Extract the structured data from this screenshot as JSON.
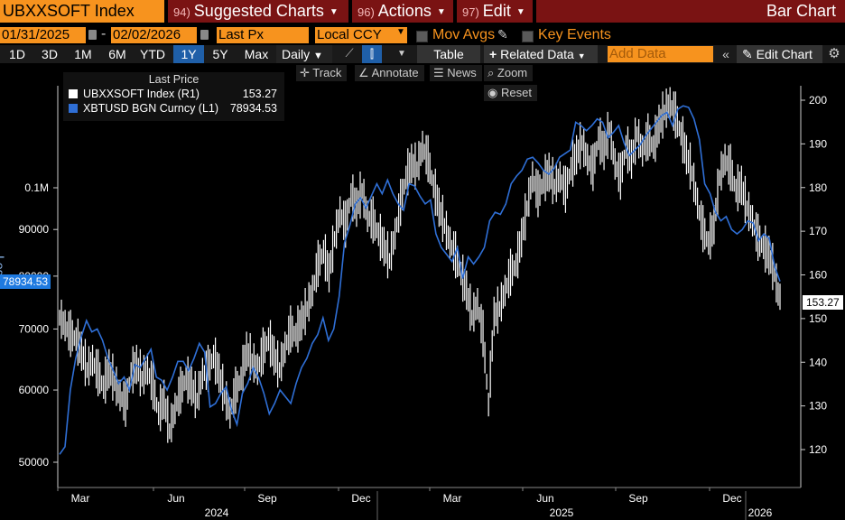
{
  "header": {
    "ticker": "UBXXSOFT Index",
    "suggested_num": "94)",
    "suggested_label": "Suggested Charts",
    "actions_num": "96)",
    "actions_label": "Actions",
    "edit_num": "97)",
    "edit_label": "Edit",
    "chart_type": "Bar Chart"
  },
  "controls": {
    "start_date": "01/31/2025",
    "end_date": "02/02/2026",
    "date_dash": "-",
    "field": "Last Px",
    "currency": "Local CCY",
    "mov_avgs": "Mov Avgs",
    "key_events": "Key Events"
  },
  "toolbar": {
    "ranges": [
      "1D",
      "3D",
      "1M",
      "6M",
      "YTD",
      "1Y",
      "5Y",
      "Max"
    ],
    "selected_range": "1Y",
    "frequency": "Daily",
    "table": "Table",
    "related_data": "Related Data",
    "add_data_placeholder": "Add Data",
    "edit_chart": "Edit Chart"
  },
  "tools": {
    "track": "Track",
    "annotate": "Annotate",
    "news": "News",
    "zoom": "Zoom",
    "reset": "Reset"
  },
  "legend": {
    "header": "Last Price",
    "items": [
      {
        "name": "UBXXSOFT Index  (R1)",
        "value": "153.27",
        "color": "#ffffff"
      },
      {
        "name": "XBTUSD BGN Curncy  (L1)",
        "value": "78934.53",
        "color": "#2f6fd6"
      }
    ]
  },
  "axis_tags": {
    "left": "78934.53",
    "right": "153.27",
    "left_scale": "Log"
  },
  "chart_data": {
    "type": "line",
    "x_labels": [
      "Mar",
      "Jun",
      "Sep",
      "Dec",
      "Mar",
      "Jun",
      "Sep",
      "Dec"
    ],
    "year_labels": [
      "2024",
      "2025",
      "2026"
    ],
    "left_axis": {
      "ticks": [
        "0.1M",
        "90000",
        "80000",
        "70000",
        "60000",
        "50000"
      ],
      "scale": "log"
    },
    "right_axis": {
      "ticks": [
        200,
        190,
        180,
        170,
        160,
        150,
        140,
        130,
        120
      ],
      "ylim": [
        117,
        204
      ]
    },
    "series": [
      {
        "name": "UBXXSOFT Index (R1)",
        "axis": "right",
        "color": "#ffffff",
        "values": [
          150,
          148,
          146,
          145,
          142,
          138,
          140,
          137,
          134,
          138,
          135,
          132,
          130,
          137,
          139,
          136,
          138,
          134,
          128,
          131,
          124,
          129,
          133,
          136,
          134,
          131,
          137,
          138,
          141,
          137,
          132,
          128,
          133,
          136,
          142,
          140,
          138,
          142,
          145,
          141,
          138,
          143,
          147,
          146,
          149,
          152,
          156,
          162,
          165,
          160,
          168,
          174,
          171,
          178,
          175,
          179,
          173,
          172,
          169,
          166,
          163,
          169,
          176,
          182,
          185,
          184,
          189,
          186,
          180,
          175,
          171,
          167,
          164,
          160,
          156,
          150,
          153,
          146,
          130,
          150,
          152,
          156,
          160,
          162,
          168,
          175,
          182,
          178,
          181,
          183,
          180,
          182,
          179,
          184,
          187,
          190,
          186,
          184,
          191,
          188,
          193,
          185,
          182,
          189,
          186,
          192,
          188,
          191,
          189,
          194,
          197,
          199,
          196,
          192,
          187,
          183,
          176,
          170,
          167,
          171,
          182,
          186,
          184,
          179,
          180,
          175,
          172,
          168,
          166,
          164,
          160,
          153
        ]
      },
      {
        "name": "XBTUSD BGN Curncy (L1)",
        "axis": "left",
        "color": "#2f6fd6",
        "values": [
          51000,
          52000,
          60000,
          65000,
          68500,
          71500,
          69500,
          70000,
          68000,
          65000,
          63000,
          61000,
          62000,
          60000,
          64000,
          63500,
          65000,
          66500,
          62000,
          61500,
          60000,
          62000,
          64500,
          64500,
          63000,
          65000,
          67500,
          66000,
          57500,
          58000,
          59500,
          60500,
          57000,
          55000,
          59500,
          61000,
          63500,
          62000,
          59500,
          56500,
          58000,
          60000,
          59000,
          58000,
          61000,
          63500,
          65000,
          67500,
          69000,
          72000,
          68000,
          70000,
          76000,
          87000,
          91000,
          96000,
          97500,
          95000,
          98000,
          101000,
          98500,
          102000,
          98500,
          96000,
          94500,
          101000,
          100500,
          98000,
          96000,
          97000,
          89000,
          86000,
          84500,
          83000,
          86000,
          79500,
          84000,
          82500,
          84000,
          86000,
          92000,
          94000,
          93500,
          96000,
          101000,
          103000,
          104500,
          107500,
          108000,
          106500,
          104500,
          103500,
          105000,
          108000,
          109000,
          110000,
          118000,
          117000,
          115500,
          117000,
          119000,
          118000,
          113500,
          115000,
          117000,
          112000,
          108500,
          110000,
          111500,
          114000,
          116000,
          118000,
          120000,
          121000,
          117000,
          122000,
          123000,
          122500,
          119000,
          113000,
          101000,
          98500,
          94000,
          92000,
          93000,
          90000,
          89000,
          90000,
          92000,
          91500,
          87500,
          89000,
          88000,
          82000,
          78934
        ]
      }
    ]
  }
}
